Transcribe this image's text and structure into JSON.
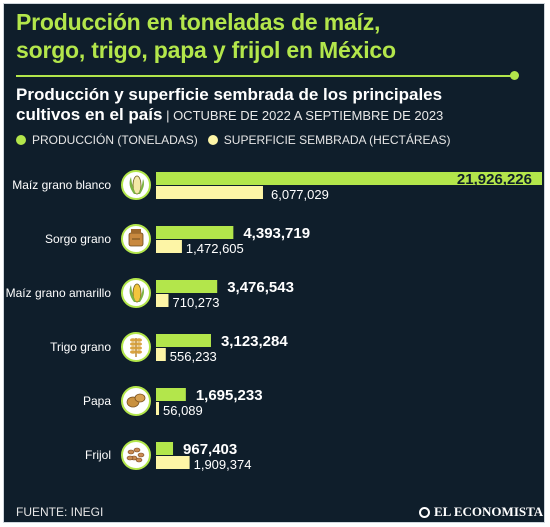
{
  "header": {
    "title_line1": "Producción en toneladas de maíz,",
    "title_line2": "sorgo, trigo, papa y frijol en México",
    "subtitle_line1": "Producción y superficie sembrada de los principales",
    "subtitle_line2": "cultivos en el país",
    "separator": " | ",
    "period": "OCTUBRE DE 2022 A SEPTIEMBRE DE 2023"
  },
  "legend": {
    "production_label": "PRODUCCIÓN (TONELADAS)",
    "surface_label": "SUPERFICIE SEMBRADA (HECTÁREAS)"
  },
  "footer": {
    "source": "FUENTE: INEGI",
    "brand": "EL ECONOMISTA"
  },
  "colors": {
    "background": "#0f1e2b",
    "production": "#b3e64b",
    "surface": "#fdf5a6",
    "headline": "#b3e64b",
    "text": "#ffffff"
  },
  "icons": [
    "corn-icon",
    "sorghum-bag-icon",
    "yellow-corn-icon",
    "wheat-icon",
    "potato-icon",
    "beans-icon"
  ],
  "chart_data": {
    "type": "bar",
    "orientation": "horizontal",
    "categories": [
      "Maíz grano blanco",
      "Sorgo grano",
      "Maíz grano amarillo",
      "Trigo grano",
      "Papa",
      "Frijol"
    ],
    "series": [
      {
        "name": "PRODUCCIÓN (TONELADAS)",
        "values": [
          21926226,
          4393719,
          3476543,
          3123284,
          1695233,
          967403
        ],
        "labels": [
          "21,926,226",
          "4,393,719",
          "3,476,543",
          "3,123,284",
          "1,695,233",
          "967,403"
        ]
      },
      {
        "name": "SUPERFICIE SEMBRADA (HECTÁREAS)",
        "values": [
          6077029,
          1472605,
          710273,
          556233,
          56089,
          1909374
        ],
        "labels": [
          "6,077,029",
          "1,472,605",
          "710,273",
          "556,233",
          "56,089",
          "1,909,374"
        ]
      }
    ]
  }
}
